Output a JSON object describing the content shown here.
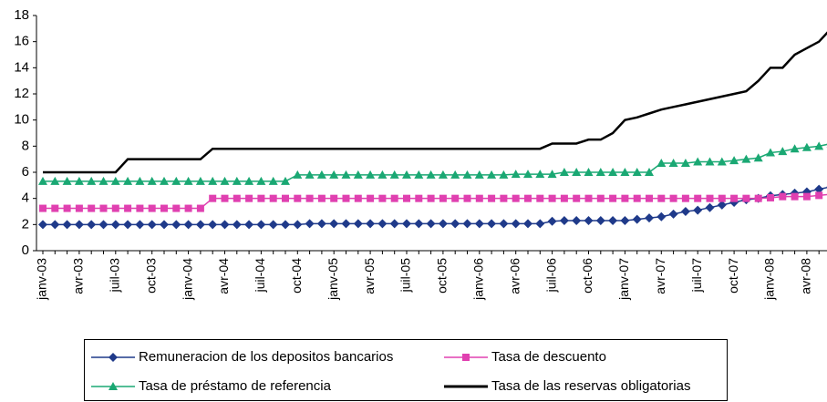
{
  "chart_data": {
    "type": "line",
    "categories": [
      "janv-03",
      null,
      null,
      "avr-03",
      null,
      null,
      "juil-03",
      null,
      null,
      "oct-03",
      null,
      null,
      "janv-04",
      null,
      null,
      "avr-04",
      null,
      null,
      "juil-04",
      null,
      null,
      "oct-04",
      null,
      null,
      "janv-05",
      null,
      null,
      "avr-05",
      null,
      null,
      "juil-05",
      null,
      null,
      "oct-05",
      null,
      null,
      "janv-06",
      null,
      null,
      "avr-06",
      null,
      null,
      "juil-06",
      null,
      null,
      "oct-06",
      null,
      null,
      "janv-07",
      null,
      null,
      "avr-07",
      null,
      null,
      "juil-07",
      null,
      null,
      "oct-07",
      null,
      null,
      "janv-08",
      null,
      null,
      "avr-08",
      null,
      null
    ],
    "series": [
      {
        "name": "Remuneracion de los depositos bancarios",
        "color": "#1f3a8a",
        "marker": "diamond",
        "values": [
          2.0,
          2.0,
          2.0,
          2.0,
          2.0,
          2.0,
          2.0,
          2.0,
          2.0,
          2.0,
          2.0,
          2.0,
          2.0,
          2.0,
          2.0,
          2.0,
          2.0,
          2.0,
          2.0,
          2.0,
          2.0,
          2.0,
          2.07,
          2.07,
          2.07,
          2.07,
          2.07,
          2.07,
          2.07,
          2.07,
          2.07,
          2.07,
          2.07,
          2.07,
          2.07,
          2.07,
          2.07,
          2.07,
          2.07,
          2.07,
          2.07,
          2.07,
          2.25,
          2.3,
          2.3,
          2.3,
          2.3,
          2.3,
          2.3,
          2.4,
          2.5,
          2.6,
          2.8,
          3.0,
          3.1,
          3.3,
          3.5,
          3.7,
          3.9,
          4.0,
          4.2,
          4.3,
          4.4,
          4.5,
          4.7,
          4.9
        ]
      },
      {
        "name": "Tasa de descuento",
        "color": "#e040b0",
        "marker": "square",
        "values": [
          3.24,
          3.24,
          3.24,
          3.24,
          3.24,
          3.24,
          3.24,
          3.24,
          3.24,
          3.24,
          3.24,
          3.24,
          3.24,
          3.24,
          4.0,
          4.0,
          4.0,
          4.0,
          4.0,
          4.0,
          4.0,
          4.0,
          4.0,
          4.0,
          4.0,
          4.0,
          4.0,
          4.0,
          4.0,
          4.0,
          4.0,
          4.0,
          4.0,
          4.0,
          4.0,
          4.0,
          4.0,
          4.0,
          4.0,
          4.0,
          4.0,
          4.0,
          4.0,
          4.0,
          4.0,
          4.0,
          4.0,
          4.0,
          4.0,
          4.0,
          4.0,
          4.0,
          4.0,
          4.0,
          4.0,
          4.0,
          4.0,
          4.0,
          4.0,
          4.0,
          4.05,
          4.14,
          4.14,
          4.14,
          4.23,
          4.32
        ]
      },
      {
        "name": "Tasa de préstamo de referencia",
        "color": "#1aa873",
        "marker": "triangle",
        "values": [
          5.31,
          5.31,
          5.31,
          5.31,
          5.31,
          5.31,
          5.31,
          5.31,
          5.31,
          5.31,
          5.31,
          5.31,
          5.31,
          5.31,
          5.31,
          5.31,
          5.31,
          5.31,
          5.31,
          5.31,
          5.31,
          5.8,
          5.8,
          5.8,
          5.8,
          5.8,
          5.8,
          5.8,
          5.8,
          5.8,
          5.8,
          5.8,
          5.8,
          5.8,
          5.8,
          5.8,
          5.8,
          5.8,
          5.8,
          5.85,
          5.85,
          5.85,
          5.85,
          6.0,
          6.0,
          6.0,
          6.0,
          6.0,
          6.0,
          6.0,
          6.0,
          6.7,
          6.7,
          6.7,
          6.8,
          6.8,
          6.8,
          6.9,
          7.0,
          7.1,
          7.5,
          7.6,
          7.8,
          7.9,
          8.0,
          8.2
        ]
      },
      {
        "name": "Tasa de las reservas obligatorias",
        "color": "#000000",
        "marker": "none",
        "values": [
          6.0,
          6.0,
          6.0,
          6.0,
          6.0,
          6.0,
          6.0,
          7.0,
          7.0,
          7.0,
          7.0,
          7.0,
          7.0,
          7.0,
          7.8,
          7.8,
          7.8,
          7.8,
          7.8,
          7.8,
          7.8,
          7.8,
          7.8,
          7.8,
          7.8,
          7.8,
          7.8,
          7.8,
          7.8,
          7.8,
          7.8,
          7.8,
          7.8,
          7.8,
          7.8,
          7.8,
          7.8,
          7.8,
          7.8,
          7.8,
          7.8,
          7.8,
          8.2,
          8.2,
          8.2,
          8.5,
          8.5,
          9.0,
          10.0,
          10.2,
          10.5,
          10.8,
          11.0,
          11.2,
          11.4,
          11.6,
          11.8,
          12.0,
          12.2,
          13.0,
          14.0,
          14.0,
          15.0,
          15.5,
          16.0,
          17.0
        ]
      }
    ],
    "ylim": [
      0,
      18
    ],
    "yticks": [
      0,
      2,
      4,
      6,
      8,
      10,
      12,
      14,
      16,
      18
    ],
    "grid": false
  }
}
